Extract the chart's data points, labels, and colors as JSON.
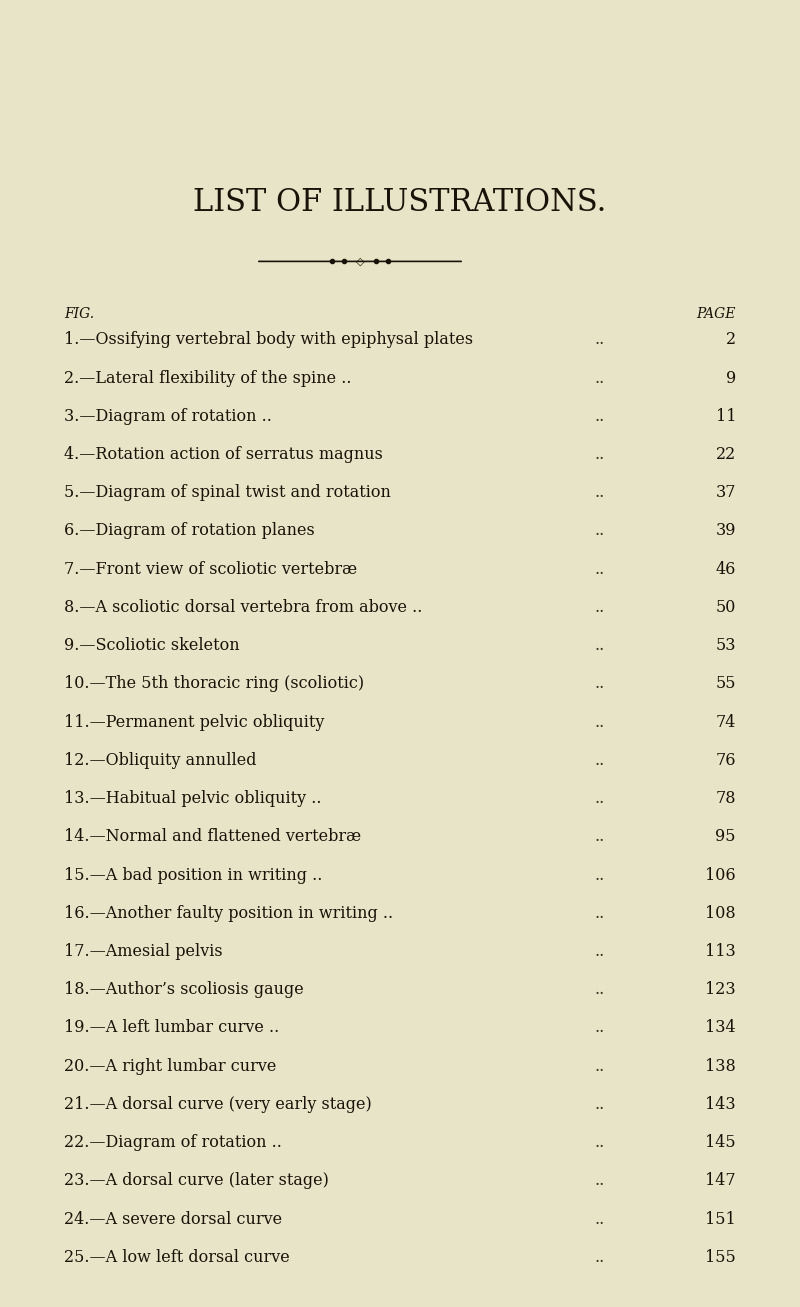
{
  "title": "LIST OF ILLUSTRATIONS.",
  "bg_color": "#e8e4c8",
  "text_color": "#1a1208",
  "title_fontsize": 22,
  "header_fig": "FIG.",
  "header_page": "PAGE",
  "entries": [
    {
      "num": "1",
      "sep": "—",
      "desc": "Ossifying vertebral body with epiphysal plates",
      "dots": "..",
      "page": "2"
    },
    {
      "num": "2",
      "sep": "—",
      "desc": "Lateral flexibility of the spine ..",
      "dots": ".. .. .. ..",
      "page": "9"
    },
    {
      "num": "3",
      "sep": "—",
      "desc": "Diagram of rotation ..",
      "dots": ".. .. .. .. .. ..",
      "page": "11"
    },
    {
      "num": "4",
      "sep": "—",
      "desc": "Rotation action of serratus magnus",
      "dots": ".. .. ..",
      "page": "22"
    },
    {
      "num": "5",
      "sep": "—",
      "desc": "Diagram of spinal twist and rotation",
      "dots": ".. .. ..",
      "page": "37"
    },
    {
      "num": "6",
      "sep": "—",
      "desc": "Diagram of rotation planes",
      "dots": ".. .. .. .. ..",
      "page": "39"
    },
    {
      "num": "7",
      "sep": "—",
      "desc": "Front view of scoliotic vertebræ",
      "dots": ".. .. .. ..",
      "page": "46"
    },
    {
      "num": "8",
      "sep": "—",
      "desc": "A scoliotic dorsal vertebra from above ..",
      "dots": ".. ..",
      "page": "50"
    },
    {
      "num": "9",
      "sep": "—",
      "desc": "Scoliotic skeleton",
      "dots": ".. .. .. .. .. .. ..",
      "page": "53"
    },
    {
      "num": "10",
      "sep": "—",
      "desc": "The 5th thoracic ring (scoliotic)",
      "dots": ".. .. .. ..",
      "page": "55"
    },
    {
      "num": "11",
      "sep": "—",
      "desc": "Permanent pelvic obliquity",
      "dots": ".. .. .. .. ..",
      "page": "74"
    },
    {
      "num": "12",
      "sep": "—",
      "desc": "Obliquity annulled",
      "dots": ".. .. .. .. .. .. ..",
      "page": "76"
    },
    {
      "num": "13",
      "sep": "—",
      "desc": "Habitual pelvic obliquity ..",
      "dots": ".. .. .. .. ..",
      "page": "78"
    },
    {
      "num": "14",
      "sep": "—",
      "desc": "Normal and flattened vertebræ",
      "dots": ".. .. .. ..",
      "page": "95"
    },
    {
      "num": "15",
      "sep": "—",
      "desc": "A bad position in writing ..",
      "dots": ".. .. .. .. ..",
      "page": "106"
    },
    {
      "num": "16",
      "sep": "—",
      "desc": "Another faulty position in writing ..",
      "dots": ".. .. ..",
      "page": "108"
    },
    {
      "num": "17",
      "sep": "—",
      "desc": "Amesial pelvis",
      "dots": ".. .. .. .. .. .. ..",
      "page": "113"
    },
    {
      "num": "18",
      "sep": "—",
      "desc": "Author’s scoliosis gauge",
      "dots": ".. .. .. .. .. ..",
      "page": "123"
    },
    {
      "num": "19",
      "sep": "—",
      "desc": "A left lumbar curve ..",
      "dots": ".. .. .. .. .. ..",
      "page": "134"
    },
    {
      "num": "20",
      "sep": "—",
      "desc": "A right lumbar curve",
      "dots": ".. .. .. .. .. ..",
      "page": "138"
    },
    {
      "num": "21",
      "sep": "—",
      "desc": "A dorsal curve (very early stage)",
      "dots": ".. .. .. ..",
      "page": "143"
    },
    {
      "num": "22",
      "sep": "—",
      "desc": "Diagram of rotation ..",
      "dots": ".. .. .. .. .. ..",
      "page": "145"
    },
    {
      "num": "23",
      "sep": "—",
      "desc": "A dorsal curve (later stage)",
      "dots": ".. .. .. .. ..",
      "page": "147"
    },
    {
      "num": "24",
      "sep": "—",
      "desc": "A severe dorsal curve",
      "dots": ".. .. .. .. .. ..",
      "page": "151"
    },
    {
      "num": "25",
      "sep": "—",
      "desc": "A low left dorsal curve",
      "dots": ".. .. .. .. .. ..",
      "page": "155"
    }
  ]
}
